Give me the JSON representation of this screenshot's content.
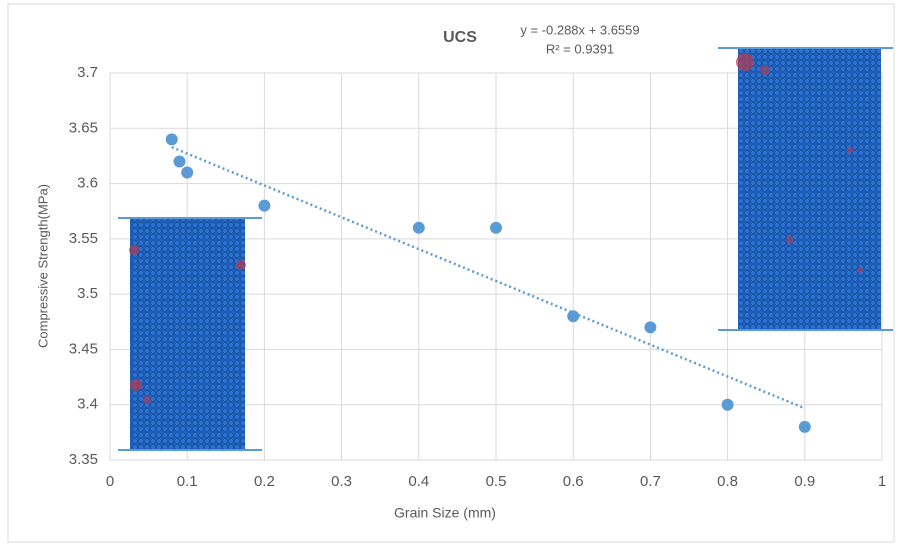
{
  "chart_data": {
    "type": "scatter",
    "title": "UCS",
    "x_label": "Grain Size (mm)",
    "y_label": "Compressive Strength(MPa)",
    "series": [
      {
        "name": "UCS",
        "color": "#5b9bd5",
        "x": [
          0.08,
          0.09,
          0.1,
          0.2,
          0.4,
          0.5,
          0.6,
          0.7,
          0.8,
          0.9
        ],
        "values": [
          3.64,
          3.62,
          3.61,
          3.58,
          3.56,
          3.56,
          3.48,
          3.47,
          3.4,
          3.38
        ]
      }
    ],
    "trendline": {
      "slope": -0.288,
      "intercept": 3.6559,
      "equation": "y = -0.288x + 3.6559",
      "r_squared": "R² = 0.9391",
      "color": "#5b9bd5"
    },
    "xlim": [
      0,
      1
    ],
    "xticks": [
      0,
      0.1,
      0.2,
      0.3,
      0.4,
      0.5,
      0.6,
      0.7,
      0.8,
      0.9,
      1
    ],
    "ylim": [
      3.35,
      3.7
    ],
    "yticks": [
      3.35,
      3.4,
      3.45,
      3.5,
      3.55,
      3.6,
      3.65,
      3.7
    ],
    "grid": true
  }
}
